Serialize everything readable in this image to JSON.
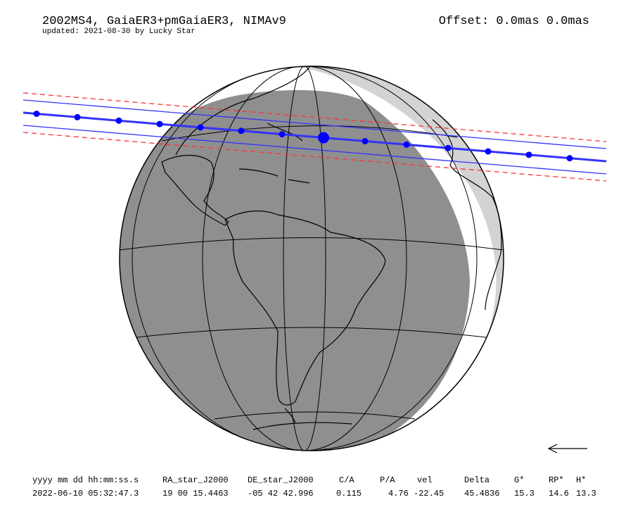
{
  "header": {
    "title": "2002MS4, GaiaER3+pmGaiaER3, NIMAv9",
    "subtitle": "updated: 2021-08-30 by Lucky Star",
    "offset": "Offset: 0.0mas 0.0mas"
  },
  "table": {
    "headers": [
      "yyyy mm dd hh:mm:ss.s",
      "RA_star_J2000",
      "DE_star_J2000",
      "C/A",
      "P/A",
      "vel",
      "Delta",
      "G*",
      "RP*",
      "H*"
    ],
    "rows": [
      [
        "2022-06-10 05:32:47.3",
        "19 00 15.4463",
        "-05 42 42.996",
        "0.115",
        "4.76",
        "-22.45",
        "45.4836",
        "15.3",
        "14.6",
        "13.3"
      ]
    ]
  }
}
